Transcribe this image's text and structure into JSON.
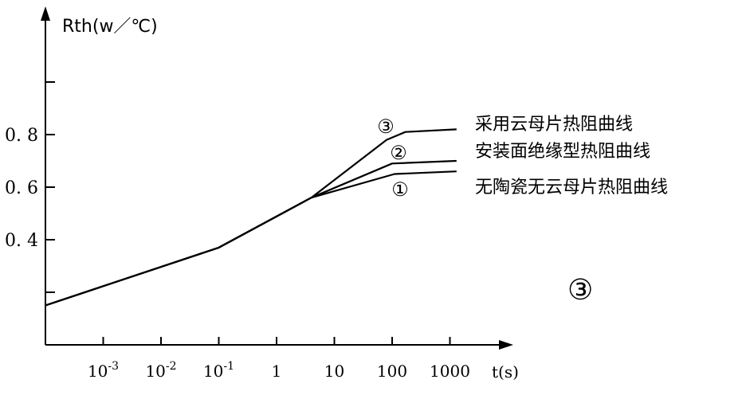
{
  "chart_data": {
    "type": "line",
    "xscale": "log",
    "yscale": "linear",
    "ylabel": "Rth(w／℃)",
    "xlabel": "t(s)",
    "xlim": [
      0.0001,
      3000
    ],
    "ylim": [
      0,
      1.0
    ],
    "x_ticks": [
      {
        "value": 0.001,
        "label": "10",
        "sup": "-3"
      },
      {
        "value": 0.01,
        "label": "10",
        "sup": "-2"
      },
      {
        "value": 0.1,
        "label": "10",
        "sup": "-1"
      },
      {
        "value": 1,
        "label": "1",
        "sup": ""
      },
      {
        "value": 10,
        "label": "10",
        "sup": ""
      },
      {
        "value": 100,
        "label": "100",
        "sup": ""
      },
      {
        "value": 1000,
        "label": "1000",
        "sup": ""
      }
    ],
    "y_ticks": [
      {
        "value": 0.2,
        "label": ""
      },
      {
        "value": 0.4,
        "label": "0. 4"
      },
      {
        "value": 0.6,
        "label": "0. 6"
      },
      {
        "value": 0.8,
        "label": "0. 8"
      },
      {
        "value": 1.0,
        "label": ""
      }
    ],
    "series": [
      {
        "marker": "③",
        "name": "采用云母片热阻曲线",
        "x": [
          0.0001,
          0.1,
          4,
          80,
          170,
          1300
        ],
        "y": [
          0.15,
          0.37,
          0.56,
          0.78,
          0.81,
          0.82
        ]
      },
      {
        "marker": "②",
        "name": "安装面绝缘型热阻曲线",
        "x": [
          0.0001,
          0.1,
          4,
          100,
          1300
        ],
        "y": [
          0.15,
          0.37,
          0.56,
          0.69,
          0.7
        ]
      },
      {
        "marker": "①",
        "name": "无陶瓷无云母片热阻曲线",
        "x": [
          0.0001,
          0.1,
          4,
          110,
          1300
        ],
        "y": [
          0.15,
          0.37,
          0.56,
          0.65,
          0.66
        ]
      }
    ],
    "annotation": "③"
  }
}
